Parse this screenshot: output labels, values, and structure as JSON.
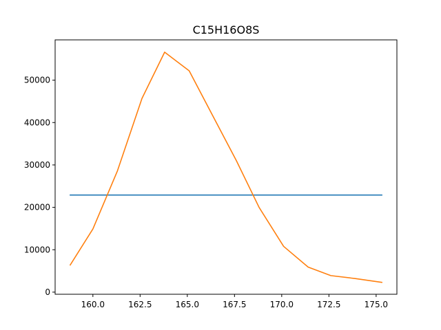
{
  "chart_data": {
    "type": "line",
    "title": "C15H16O8S",
    "xlabel": "",
    "ylabel": "",
    "xlim": [
      158.0,
      176.1
    ],
    "ylim": [
      -500,
      59500
    ],
    "grid": false,
    "xticks": [
      160.0,
      162.5,
      165.0,
      167.5,
      170.0,
      172.5,
      175.0
    ],
    "xtick_labels": [
      "160.0",
      "162.5",
      "165.0",
      "167.5",
      "170.0",
      "172.5",
      "175.0"
    ],
    "yticks": [
      0,
      10000,
      20000,
      30000,
      40000,
      50000
    ],
    "ytick_labels": [
      "0",
      "10000",
      "20000",
      "30000",
      "40000",
      "50000"
    ],
    "series": [
      {
        "color": "#1f77b4",
        "x": [
          158.8,
          175.3
        ],
        "y": [
          22900,
          22900
        ]
      },
      {
        "color": "#ff7f0e",
        "x": [
          158.8,
          160.0,
          161.3,
          162.6,
          163.8,
          165.1,
          166.3,
          167.6,
          168.8,
          170.1,
          171.4,
          172.6,
          173.9,
          175.3
        ],
        "y": [
          6400,
          14900,
          28600,
          45700,
          56600,
          52200,
          42000,
          31000,
          20000,
          10800,
          5900,
          3900,
          3200,
          2300
        ]
      }
    ]
  }
}
